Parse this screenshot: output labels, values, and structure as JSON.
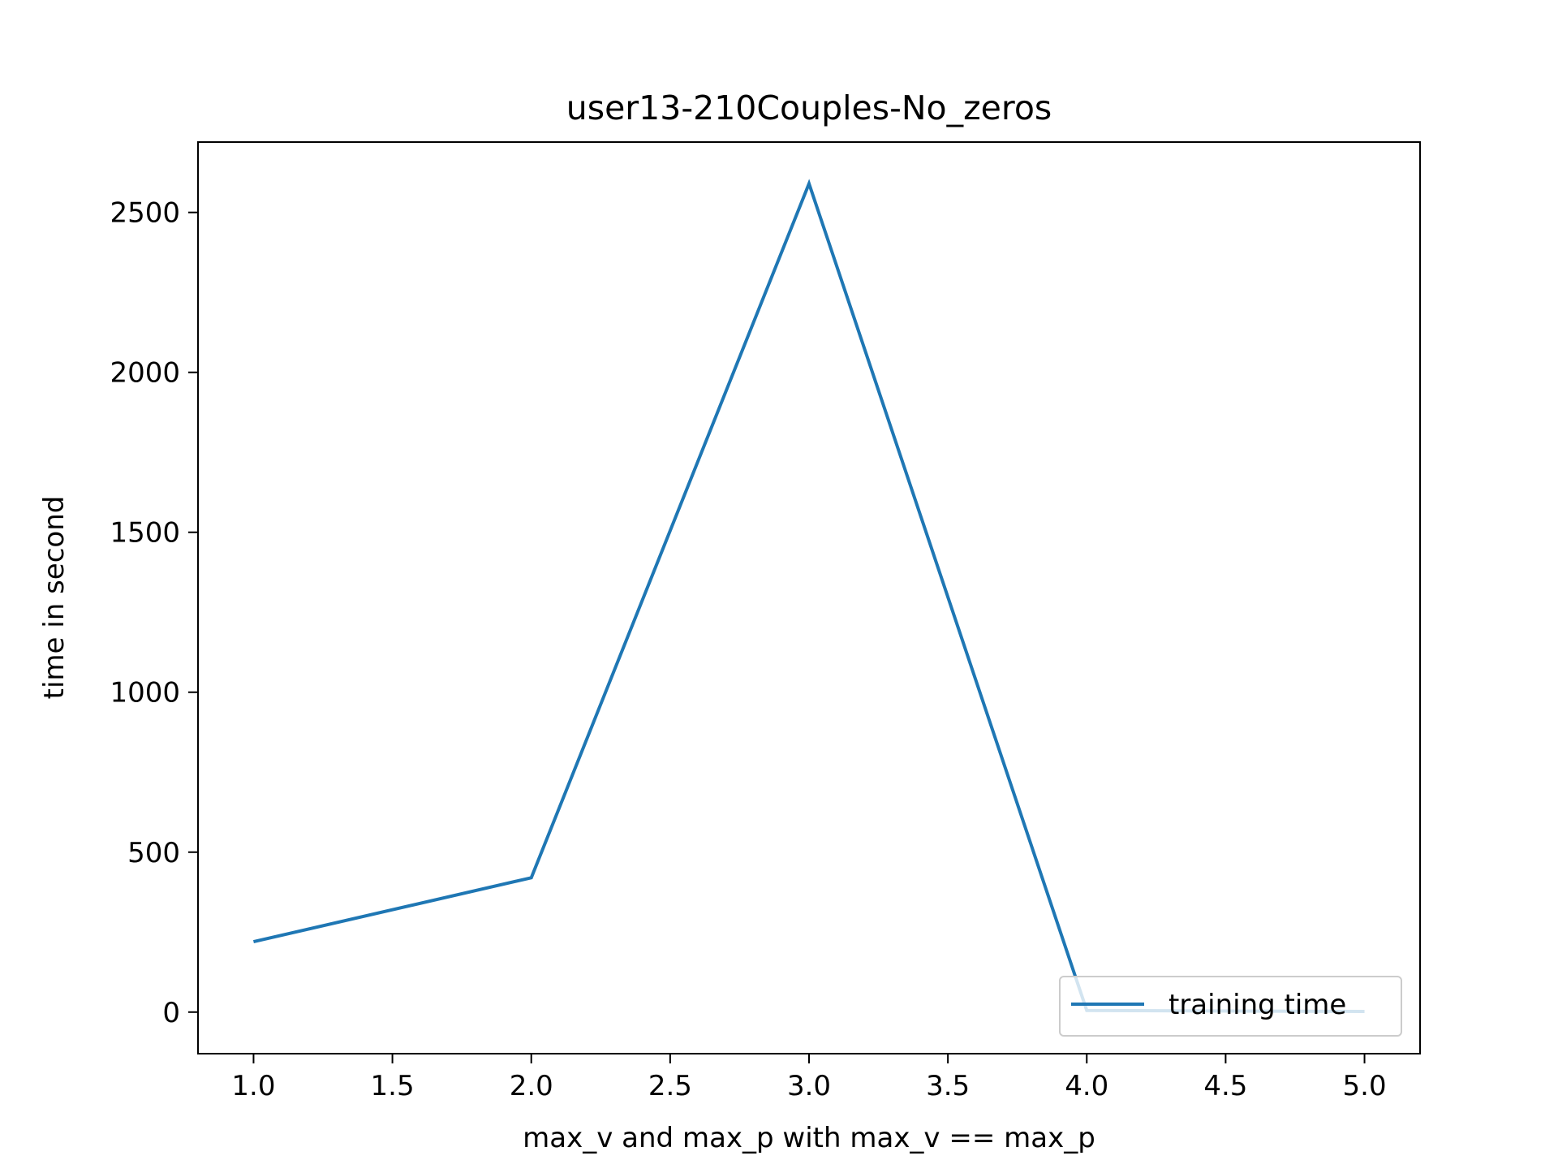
{
  "chart_data": {
    "type": "line",
    "title": "user13-210Couples-No_zeros",
    "xlabel": "max_v and max_p with max_v == max_p",
    "ylabel": "time in second",
    "x": [
      1,
      2,
      3,
      4,
      5
    ],
    "series": [
      {
        "name": "training time",
        "values": [
          220,
          420,
          2590,
          5,
          2
        ],
        "color": "#1f77b4"
      }
    ],
    "xlim": [
      0.8,
      5.2
    ],
    "ylim": [
      -130,
      2720
    ],
    "xticks": [
      "1.0",
      "1.5",
      "2.0",
      "2.5",
      "3.0",
      "3.5",
      "4.0",
      "4.5",
      "5.0"
    ],
    "yticks": [
      "0",
      "500",
      "1000",
      "1500",
      "2000",
      "2500"
    ],
    "grid": false,
    "legend_position": "lower-right"
  }
}
